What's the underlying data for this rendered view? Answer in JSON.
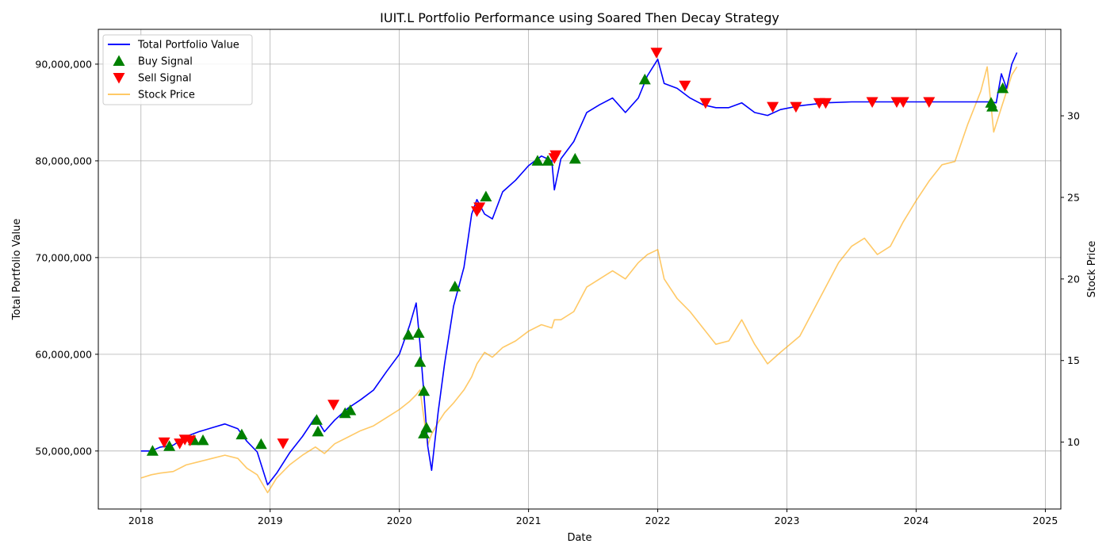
{
  "chart_data": {
    "type": "line",
    "title": "IUIT.L Portfolio Performance using Soared Then Decay Strategy",
    "xlabel": "Date",
    "ylabel": "Total Portfolio Value",
    "y2label": "Stock Price",
    "xlim": [
      2017.67,
      2025.12
    ],
    "ylim": [
      44000000,
      93600000
    ],
    "y2lim": [
      5.9,
      35.3
    ],
    "x_ticks": [
      2018,
      2019,
      2020,
      2021,
      2022,
      2023,
      2024,
      2025
    ],
    "x_tick_labels": [
      "2018",
      "2019",
      "2020",
      "2021",
      "2022",
      "2023",
      "2024",
      "2025"
    ],
    "y_ticks": [
      50000000,
      60000000,
      70000000,
      80000000,
      90000000
    ],
    "y_tick_labels": [
      "50,000,000",
      "60,000,000",
      "70,000,000",
      "80,000,000",
      "90,000,000"
    ],
    "y2_ticks": [
      10,
      15,
      20,
      25,
      30
    ],
    "y2_tick_labels": [
      "10",
      "15",
      "20",
      "25",
      "30"
    ],
    "grid": true,
    "legend": {
      "placement": "top-left",
      "entries": [
        {
          "label": "Total Portfolio Value",
          "kind": "line",
          "color": "#0000ff"
        },
        {
          "label": "Buy Signal",
          "kind": "marker-up",
          "color": "#008000"
        },
        {
          "label": "Sell Signal",
          "kind": "marker-down",
          "color": "#ff0000"
        },
        {
          "label": "Stock Price",
          "kind": "line",
          "color": "#ffa500"
        }
      ]
    },
    "series": [
      {
        "name": "Total Portfolio Value",
        "axis": "left",
        "color": "#0000ff",
        "x": [
          2018.0,
          2018.08,
          2018.15,
          2018.25,
          2018.35,
          2018.45,
          2018.55,
          2018.65,
          2018.75,
          2018.82,
          2018.9,
          2018.98,
          2019.05,
          2019.15,
          2019.25,
          2019.35,
          2019.42,
          2019.5,
          2019.6,
          2019.7,
          2019.8,
          2019.9,
          2020.0,
          2020.08,
          2020.13,
          2020.16,
          2020.19,
          2020.22,
          2020.25,
          2020.3,
          2020.35,
          2020.42,
          2020.5,
          2020.56,
          2020.6,
          2020.66,
          2020.72,
          2020.8,
          2020.9,
          2021.0,
          2021.1,
          2021.18,
          2021.2,
          2021.25,
          2021.35,
          2021.45,
          2021.55,
          2021.65,
          2021.75,
          2021.85,
          2021.92,
          2022.0,
          2022.05,
          2022.15,
          2022.25,
          2022.35,
          2022.45,
          2022.55,
          2022.65,
          2022.75,
          2022.85,
          2022.95,
          2023.1,
          2023.3,
          2023.5,
          2023.7,
          2024.0,
          2024.3,
          2024.58,
          2024.62,
          2024.66,
          2024.7,
          2024.74,
          2024.78
        ],
        "values": [
          50000000,
          50000000,
          50400000,
          50600000,
          51500000,
          52000000,
          52400000,
          52800000,
          52300000,
          51000000,
          49900000,
          46500000,
          47700000,
          49800000,
          51500000,
          53500000,
          52000000,
          53200000,
          54400000,
          55300000,
          56300000,
          58200000,
          60000000,
          63000000,
          65300000,
          61000000,
          56000000,
          50500000,
          48000000,
          54000000,
          59000000,
          65000000,
          69000000,
          74500000,
          76000000,
          74500000,
          74000000,
          76800000,
          78000000,
          79500000,
          80500000,
          80000000,
          77000000,
          80200000,
          82000000,
          85000000,
          85800000,
          86500000,
          85000000,
          86500000,
          88800000,
          90500000,
          88000000,
          87500000,
          86500000,
          85800000,
          85500000,
          85500000,
          86000000,
          85000000,
          84700000,
          85300000,
          85700000,
          86000000,
          86100000,
          86100000,
          86100000,
          86100000,
          86100000,
          86000000,
          89000000,
          87500000,
          90000000,
          91200000
        ]
      },
      {
        "name": "Stock Price",
        "axis": "right",
        "color": "#ffa500",
        "x": [
          2018.0,
          2018.08,
          2018.15,
          2018.25,
          2018.35,
          2018.45,
          2018.55,
          2018.65,
          2018.75,
          2018.82,
          2018.9,
          2018.98,
          2019.05,
          2019.15,
          2019.25,
          2019.35,
          2019.42,
          2019.5,
          2019.6,
          2019.7,
          2019.8,
          2019.9,
          2020.0,
          2020.08,
          2020.13,
          2020.16,
          2020.19,
          2020.22,
          2020.25,
          2020.3,
          2020.35,
          2020.42,
          2020.5,
          2020.56,
          2020.6,
          2020.66,
          2020.72,
          2020.8,
          2020.9,
          2021.0,
          2021.1,
          2021.18,
          2021.2,
          2021.25,
          2021.35,
          2021.45,
          2021.55,
          2021.65,
          2021.75,
          2021.85,
          2021.92,
          2022.0,
          2022.05,
          2022.15,
          2022.25,
          2022.35,
          2022.45,
          2022.55,
          2022.65,
          2022.75,
          2022.85,
          2022.95,
          2023.1,
          2023.2,
          2023.3,
          2023.4,
          2023.5,
          2023.6,
          2023.7,
          2023.8,
          2023.9,
          2024.0,
          2024.1,
          2024.2,
          2024.3,
          2024.4,
          2024.5,
          2024.55,
          2024.6,
          2024.66,
          2024.7,
          2024.74,
          2024.78
        ],
        "values": [
          7.8,
          8.0,
          8.1,
          8.2,
          8.6,
          8.8,
          9.0,
          9.2,
          9.0,
          8.4,
          8.0,
          6.9,
          7.8,
          8.6,
          9.2,
          9.7,
          9.3,
          9.9,
          10.3,
          10.7,
          11.0,
          11.5,
          12.0,
          12.5,
          12.9,
          13.2,
          11.5,
          9.8,
          10.5,
          11.2,
          11.8,
          12.4,
          13.2,
          14.0,
          14.8,
          15.5,
          15.2,
          15.8,
          16.2,
          16.8,
          17.2,
          17.0,
          17.5,
          17.5,
          18.0,
          19.5,
          20.0,
          20.5,
          20.0,
          21.0,
          21.5,
          21.8,
          20.0,
          18.8,
          18.0,
          17.0,
          16.0,
          16.2,
          17.5,
          16.0,
          14.8,
          15.5,
          16.5,
          18.0,
          19.5,
          21.0,
          22.0,
          22.5,
          21.5,
          22.0,
          23.5,
          24.8,
          26.0,
          27.0,
          27.2,
          29.5,
          31.5,
          33.0,
          29.0,
          30.5,
          31.5,
          32.5,
          33.0
        ]
      }
    ],
    "buy_signals": {
      "name": "Buy Signal",
      "color": "#008000",
      "x": [
        2018.09,
        2018.22,
        2018.41,
        2018.48,
        2018.78,
        2018.93,
        2019.36,
        2019.37,
        2019.58,
        2019.62,
        2020.07,
        2020.15,
        2020.16,
        2020.19,
        2020.19,
        2020.21,
        2020.43,
        2020.67,
        2021.07,
        2021.15,
        2021.36,
        2021.9,
        2024.58,
        2024.59,
        2024.67
      ],
      "values": [
        50000000,
        50500000,
        51100000,
        51100000,
        51700000,
        50700000,
        53200000,
        52000000,
        53900000,
        54200000,
        62000000,
        62200000,
        59200000,
        56200000,
        51800000,
        52400000,
        67000000,
        76300000,
        80000000,
        80000000,
        80200000,
        88400000,
        86000000,
        85600000,
        87500000
      ]
    },
    "sell_signals": {
      "name": "Sell Signal",
      "color": "#ff0000",
      "x": [
        2018.18,
        2018.3,
        2018.34,
        2018.38,
        2019.1,
        2019.49,
        2020.6,
        2020.62,
        2021.2,
        2021.21,
        2021.99,
        2022.21,
        2022.37,
        2022.89,
        2023.07,
        2023.25,
        2023.3,
        2023.66,
        2023.85,
        2023.9,
        2024.1
      ],
      "values": [
        50900000,
        50800000,
        51200000,
        51100000,
        50800000,
        54800000,
        74800000,
        75200000,
        80300000,
        80600000,
        91200000,
        87800000,
        86000000,
        85600000,
        85600000,
        86000000,
        86000000,
        86100000,
        86100000,
        86100000,
        86100000
      ]
    }
  }
}
